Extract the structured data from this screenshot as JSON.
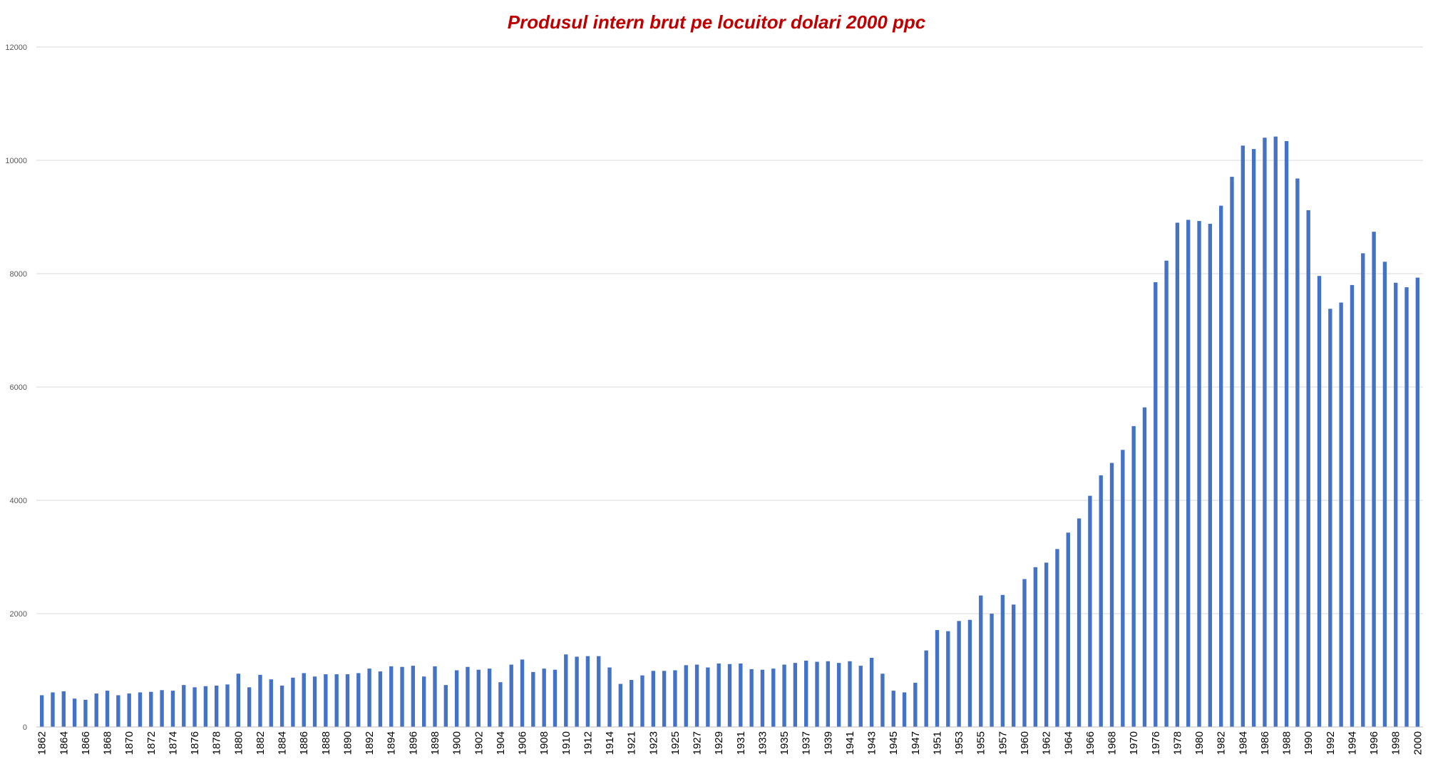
{
  "colors": {
    "bar": "#4472C4",
    "title": "#C00000",
    "grid": "#D9D9D9",
    "axis": "#BFBFBF"
  },
  "chart_data": {
    "type": "bar",
    "title": "Produsul intern brut pe locuitor dolari 2000 ppc",
    "xlabel": "",
    "ylabel": "",
    "ylim": [
      0,
      12000
    ],
    "yticks": [
      0,
      2000,
      4000,
      6000,
      8000,
      10000,
      12000
    ],
    "grid": true,
    "legend": "none",
    "categories": [
      1862,
      1863,
      1864,
      1865,
      1866,
      1867,
      1868,
      1869,
      1870,
      1871,
      1872,
      1873,
      1874,
      1875,
      1876,
      1877,
      1878,
      1879,
      1880,
      1881,
      1882,
      1883,
      1884,
      1885,
      1886,
      1887,
      1888,
      1889,
      1890,
      1891,
      1892,
      1893,
      1894,
      1895,
      1896,
      1897,
      1898,
      1899,
      1900,
      1901,
      1902,
      1903,
      1904,
      1905,
      1906,
      1907,
      1908,
      1909,
      1910,
      1911,
      1912,
      1913,
      1914,
      1920,
      1921,
      1922,
      1923,
      1924,
      1925,
      1926,
      1927,
      1928,
      1929,
      1930,
      1931,
      1932,
      1933,
      1934,
      1935,
      1936,
      1937,
      1938,
      1939,
      1940,
      1941,
      1942,
      1943,
      1944,
      1945,
      1946,
      1947,
      1950,
      1951,
      1952,
      1953,
      1954,
      1955,
      1956,
      1957,
      1958,
      1960,
      1961,
      1962,
      1963,
      1964,
      1965,
      1966,
      1967,
      1968,
      1969,
      1970,
      1975,
      1976,
      1977,
      1978,
      1979,
      1980,
      1981,
      1982,
      1983,
      1984,
      1985,
      1986,
      1987,
      1988,
      1989,
      1990,
      1991,
      1992,
      1993,
      1994,
      1995,
      1996,
      1997,
      1998,
      1999,
      2000
    ],
    "xtick_labels": [
      1862,
      1864,
      1866,
      1868,
      1870,
      1872,
      1874,
      1876,
      1878,
      1880,
      1882,
      1884,
      1886,
      1888,
      1890,
      1892,
      1894,
      1896,
      1898,
      1900,
      1902,
      1904,
      1906,
      1908,
      1910,
      1912,
      1914,
      1921,
      1923,
      1925,
      1927,
      1929,
      1931,
      1933,
      1935,
      1937,
      1939,
      1941,
      1943,
      1945,
      1947,
      1951,
      1953,
      1955,
      1957,
      1960,
      1962,
      1964,
      1966,
      1968,
      1970,
      1976,
      1978,
      1980,
      1982,
      1984,
      1986,
      1988,
      1990,
      1992,
      1994,
      1996,
      1998,
      2000
    ],
    "values": [
      560,
      610,
      630,
      500,
      480,
      590,
      640,
      560,
      590,
      610,
      620,
      650,
      640,
      740,
      700,
      720,
      730,
      750,
      940,
      700,
      920,
      840,
      730,
      870,
      950,
      890,
      930,
      930,
      930,
      950,
      1030,
      980,
      1070,
      1060,
      1080,
      890,
      1070,
      740,
      1000,
      1060,
      1010,
      1030,
      790,
      1100,
      1190,
      970,
      1030,
      1010,
      1280,
      1240,
      1250,
      1250,
      1050,
      760,
      830,
      910,
      990,
      990,
      1000,
      1090,
      1100,
      1050,
      1120,
      1110,
      1120,
      1020,
      1010,
      1030,
      1100,
      1130,
      1170,
      1150,
      1160,
      1130,
      1160,
      1080,
      1220,
      940,
      640,
      610,
      780,
      1350,
      1710,
      1690,
      1870,
      1890,
      2320,
      2000,
      2330,
      2160,
      2610,
      2820,
      2900,
      3140,
      3430,
      3680,
      4080,
      4440,
      4660,
      4890,
      5310,
      5640,
      7850,
      8230,
      8900,
      8950,
      8930,
      8880,
      9200,
      9710,
      10260,
      10200,
      10400,
      10420,
      10340,
      9680,
      9120,
      7960,
      7380,
      7490,
      7800,
      8360,
      8740,
      8210,
      7840,
      7760,
      7930
    ]
  }
}
